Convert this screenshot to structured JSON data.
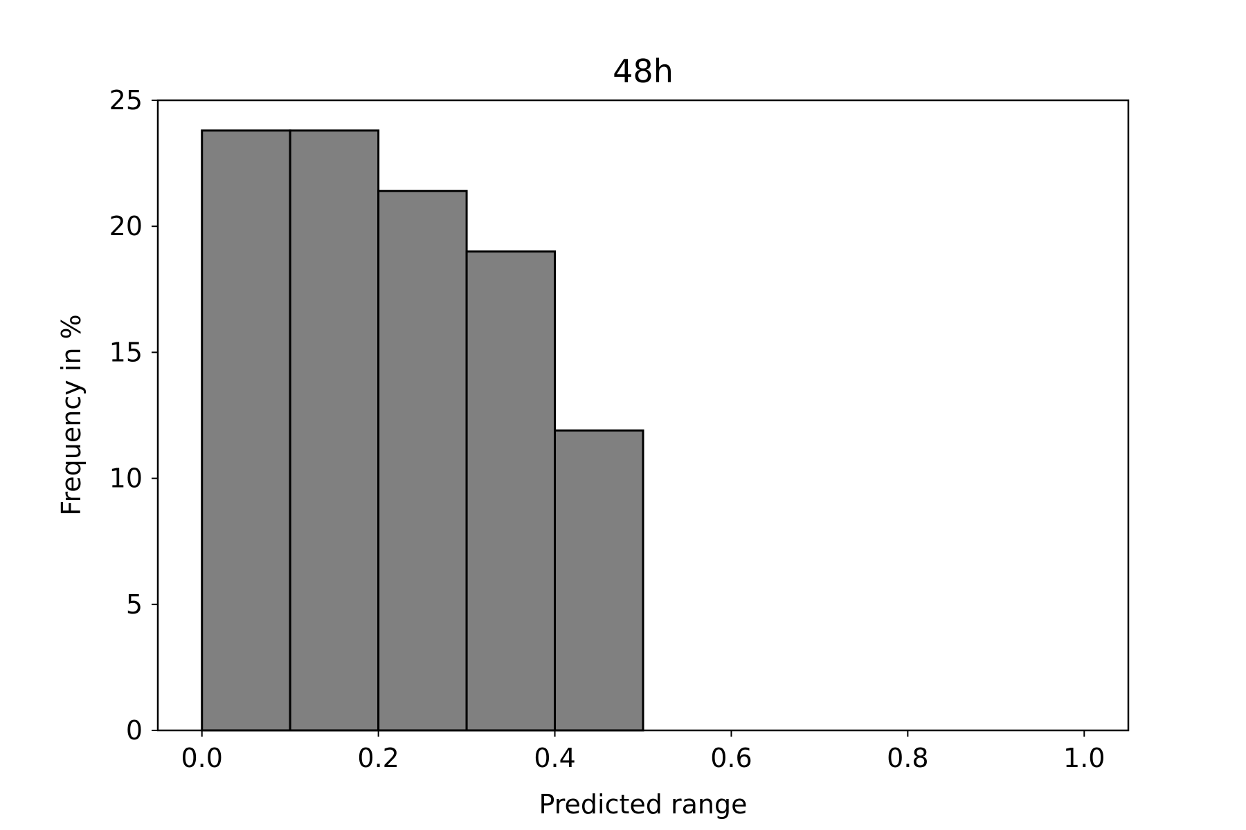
{
  "chart_data": {
    "type": "bar",
    "title": "48h",
    "xlabel": "Predicted range",
    "ylabel": "Frequency in %",
    "bins": [
      {
        "x0": 0.0,
        "x1": 0.1,
        "value": 23.8
      },
      {
        "x0": 0.1,
        "x1": 0.2,
        "value": 23.8
      },
      {
        "x0": 0.2,
        "x1": 0.3,
        "value": 21.4
      },
      {
        "x0": 0.3,
        "x1": 0.4,
        "value": 19.0
      },
      {
        "x0": 0.4,
        "x1": 0.5,
        "value": 11.9
      },
      {
        "x0": 0.5,
        "x1": 0.6,
        "value": 0
      },
      {
        "x0": 0.6,
        "x1": 0.7,
        "value": 0
      },
      {
        "x0": 0.7,
        "x1": 0.8,
        "value": 0
      },
      {
        "x0": 0.8,
        "x1": 0.9,
        "value": 0
      },
      {
        "x0": 0.9,
        "x1": 1.0,
        "value": 0
      }
    ],
    "xlim": [
      -0.05,
      1.05
    ],
    "ylim": [
      0,
      25
    ],
    "xticks": [
      0.0,
      0.2,
      0.4,
      0.6,
      0.8,
      1.0
    ],
    "xtick_labels": [
      "0.0",
      "0.2",
      "0.4",
      "0.6",
      "0.8",
      "1.0"
    ],
    "yticks": [
      0,
      5,
      10,
      15,
      20,
      25
    ],
    "ytick_labels": [
      "0",
      "5",
      "10",
      "15",
      "20",
      "25"
    ],
    "bar_color": "#808080",
    "edge_color": "#000000",
    "grid": false,
    "legend": false
  }
}
